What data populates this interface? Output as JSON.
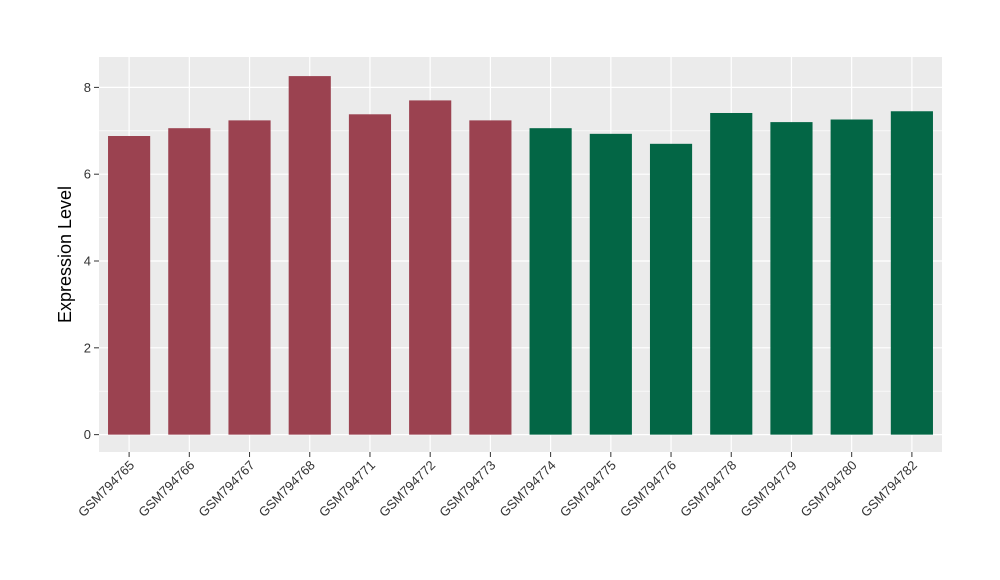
{
  "chart_data": {
    "type": "bar",
    "title": "",
    "xlabel": "",
    "ylabel": "Expression Level",
    "ylim": [
      -0.4,
      8.7
    ],
    "yticks": [
      0,
      2,
      4,
      6,
      8
    ],
    "grid": true,
    "legend": "none",
    "colors": {
      "group_a": "#9B4250",
      "group_b": "#036645",
      "panel": "#EBEBEB",
      "grid": "#FFFFFF"
    },
    "categories": [
      "GSM794765",
      "GSM794766",
      "GSM794767",
      "GSM794768",
      "GSM794771",
      "GSM794772",
      "GSM794773",
      "GSM794774",
      "GSM794775",
      "GSM794776",
      "GSM794778",
      "GSM794779",
      "GSM794780",
      "GSM794782"
    ],
    "values": [
      6.88,
      7.06,
      7.24,
      8.26,
      7.38,
      7.7,
      7.24,
      7.06,
      6.93,
      6.7,
      7.41,
      7.2,
      7.26,
      7.45
    ],
    "groups": [
      "group_a",
      "group_a",
      "group_a",
      "group_a",
      "group_a",
      "group_a",
      "group_a",
      "group_b",
      "group_b",
      "group_b",
      "group_b",
      "group_b",
      "group_b",
      "group_b"
    ]
  }
}
